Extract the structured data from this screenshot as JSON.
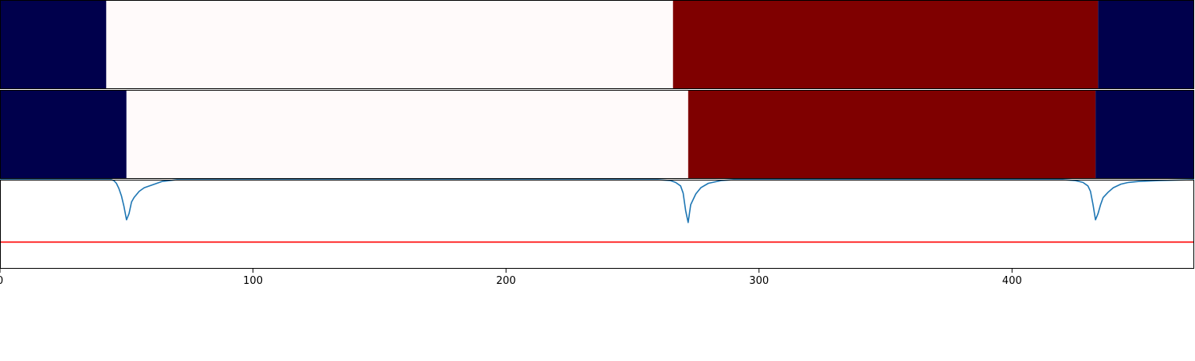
{
  "chart_data": [
    {
      "type": "heatmap",
      "title": "",
      "xlim": [
        0,
        472
      ],
      "segments": [
        {
          "x0": 0,
          "x1": 42,
          "color": "#00004c"
        },
        {
          "x0": 42,
          "x1": 266,
          "color": "#fffafa"
        },
        {
          "x0": 266,
          "x1": 434,
          "color": "#7f0000"
        },
        {
          "x0": 434,
          "x1": 472,
          "color": "#00004c"
        }
      ]
    },
    {
      "type": "heatmap",
      "title": "",
      "xlim": [
        0,
        472
      ],
      "segments": [
        {
          "x0": 0,
          "x1": 50,
          "color": "#00004c"
        },
        {
          "x0": 50,
          "x1": 272,
          "color": "#fffafa"
        },
        {
          "x0": 272,
          "x1": 433,
          "color": "#7f0000"
        },
        {
          "x0": 433,
          "x1": 472,
          "color": "#00004c"
        }
      ]
    },
    {
      "type": "line",
      "title": "",
      "xlabel": "",
      "ylabel": "",
      "xlim": [
        0,
        472
      ],
      "ylim": [
        0,
        1
      ],
      "grid": false,
      "x_ticks": [
        0,
        100,
        200,
        300,
        400
      ],
      "series": [
        {
          "color": "#1f77b4",
          "x": [
            0,
            44,
            45,
            46,
            47,
            48,
            49,
            50,
            51,
            52,
            53,
            55,
            57,
            60,
            64,
            70,
            260,
            265,
            267,
            269,
            270,
            271,
            272,
            273,
            275,
            277,
            280,
            285,
            290,
            420,
            425,
            428,
            430,
            431,
            432,
            433,
            434,
            435,
            436,
            438,
            440,
            443,
            446,
            450,
            458,
            472
          ],
          "y": [
            1.0,
            1.0,
            0.99,
            0.96,
            0.9,
            0.82,
            0.7,
            0.55,
            0.62,
            0.75,
            0.8,
            0.87,
            0.91,
            0.94,
            0.98,
            1.0,
            1.0,
            0.99,
            0.97,
            0.93,
            0.85,
            0.65,
            0.52,
            0.72,
            0.84,
            0.91,
            0.96,
            0.99,
            1.0,
            1.0,
            0.99,
            0.97,
            0.93,
            0.87,
            0.72,
            0.55,
            0.62,
            0.72,
            0.8,
            0.86,
            0.91,
            0.95,
            0.97,
            0.98,
            0.99,
            1.0
          ]
        },
        {
          "color": "#ff0000",
          "x": [
            0,
            472
          ],
          "y": [
            0.3,
            0.3
          ]
        }
      ]
    }
  ]
}
